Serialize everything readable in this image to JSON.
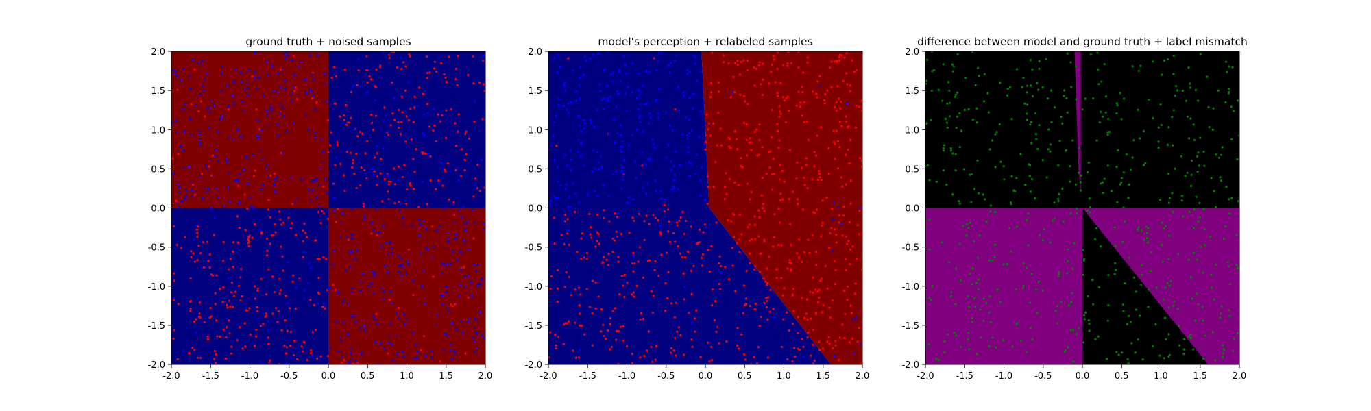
{
  "colors": {
    "background": "#ffffff",
    "region_red": "#800000",
    "region_blue": "#000080",
    "region_black": "#000000",
    "region_purple": "#800080",
    "sample_red": "#ff0000",
    "sample_blue": "#0000ff",
    "sample_green": "#008000",
    "axis": "#000000"
  },
  "chart_data": [
    {
      "type": "scatter",
      "title": "ground truth + noised samples",
      "xlim": [
        -2.0,
        2.0
      ],
      "ylim": [
        -2.0,
        2.0
      ],
      "xticks": [
        "-2.0",
        "-1.5",
        "-1.0",
        "-0.5",
        "0.0",
        "0.5",
        "1.0",
        "1.5",
        "2.0"
      ],
      "yticks": [
        "-2.0",
        "-1.5",
        "-1.0",
        "-0.5",
        "0.0",
        "0.5",
        "1.0",
        "1.5",
        "2.0"
      ],
      "grid": false,
      "background_regions": [
        {
          "color": "red",
          "polygon": [
            [
              -2,
              0
            ],
            [
              0,
              0
            ],
            [
              0,
              2
            ],
            [
              -2,
              2
            ]
          ]
        },
        {
          "color": "blue",
          "polygon": [
            [
              0,
              0
            ],
            [
              2,
              0
            ],
            [
              2,
              2
            ],
            [
              0,
              2
            ]
          ]
        },
        {
          "color": "blue",
          "polygon": [
            [
              -2,
              -2
            ],
            [
              0,
              -2
            ],
            [
              0,
              0
            ],
            [
              -2,
              0
            ]
          ]
        },
        {
          "color": "red",
          "polygon": [
            [
              0,
              -2
            ],
            [
              2,
              -2
            ],
            [
              2,
              0
            ],
            [
              0,
              0
            ]
          ]
        }
      ],
      "samples": {
        "count": 1000,
        "distribution": "uniform x in [-2,2], y in [-2,2]",
        "coloring": "noised ground truth (x*y>0 -> red, else blue), ~15% labels flipped",
        "colors": [
          "red",
          "blue"
        ]
      }
    },
    {
      "type": "scatter",
      "title": "model's perception + relabeled samples",
      "xlim": [
        -2.0,
        2.0
      ],
      "ylim": [
        -2.0,
        2.0
      ],
      "xticks": [
        "-2.0",
        "-1.5",
        "-1.0",
        "-0.5",
        "0.0",
        "0.5",
        "1.0",
        "1.5",
        "2.0"
      ],
      "yticks": [
        "-2.0",
        "-1.5",
        "-1.0",
        "-0.5",
        "0.0",
        "0.5",
        "1.0",
        "1.5",
        "2.0"
      ],
      "grid": false,
      "background_regions": [
        {
          "color": "blue",
          "polygon": [
            [
              -2,
              -2
            ],
            [
              1.6,
              -2
            ],
            [
              0.05,
              0
            ],
            [
              -0.05,
              2
            ],
            [
              -2,
              2
            ]
          ]
        },
        {
          "color": "red",
          "polygon": [
            [
              1.6,
              -2
            ],
            [
              2,
              -2
            ],
            [
              2,
              2
            ],
            [
              -0.05,
              2
            ],
            [
              0.05,
              0
            ]
          ]
        }
      ],
      "samples": {
        "count": 1000,
        "distribution": "uniform x in [-2,2], y in [-2,2]",
        "coloring": "upper-left blue, upper-right red, lower-left red, lower-right wedge red",
        "colors": [
          "red",
          "blue"
        ]
      }
    },
    {
      "type": "scatter",
      "title": "difference between model and ground truth + label mismatch",
      "xlim": [
        -2.0,
        2.0
      ],
      "ylim": [
        -2.0,
        2.0
      ],
      "xticks": [
        "-2.0",
        "-1.5",
        "-1.0",
        "-0.5",
        "0.0",
        "0.5",
        "1.0",
        "1.5",
        "2.0"
      ],
      "yticks": [
        "-2.0",
        "-1.5",
        "-1.0",
        "-0.5",
        "0.0",
        "0.5",
        "1.0",
        "1.5",
        "2.0"
      ],
      "grid": false,
      "background_regions": [
        {
          "color": "black",
          "polygon": [
            [
              -2,
              -2
            ],
            [
              2,
              -2
            ],
            [
              2,
              2
            ],
            [
              -2,
              2
            ]
          ]
        },
        {
          "color": "purple",
          "polygon": [
            [
              -2,
              -2
            ],
            [
              0,
              -2
            ],
            [
              0,
              0
            ],
            [
              -2,
              0
            ]
          ]
        },
        {
          "color": "purple",
          "polygon": [
            [
              0,
              0
            ],
            [
              2,
              0
            ],
            [
              2,
              -2
            ],
            [
              1.6,
              -2
            ]
          ]
        },
        {
          "color": "purple",
          "polygon": [
            [
              -0.1,
              2
            ],
            [
              -0.02,
              2
            ],
            [
              -0.02,
              0.2
            ],
            [
              -0.05,
              0.5
            ]
          ]
        }
      ],
      "samples": {
        "count": 600,
        "distribution": "points where model label differs from noised label",
        "coloring": "mismatch",
        "colors": [
          "green"
        ]
      }
    }
  ]
}
